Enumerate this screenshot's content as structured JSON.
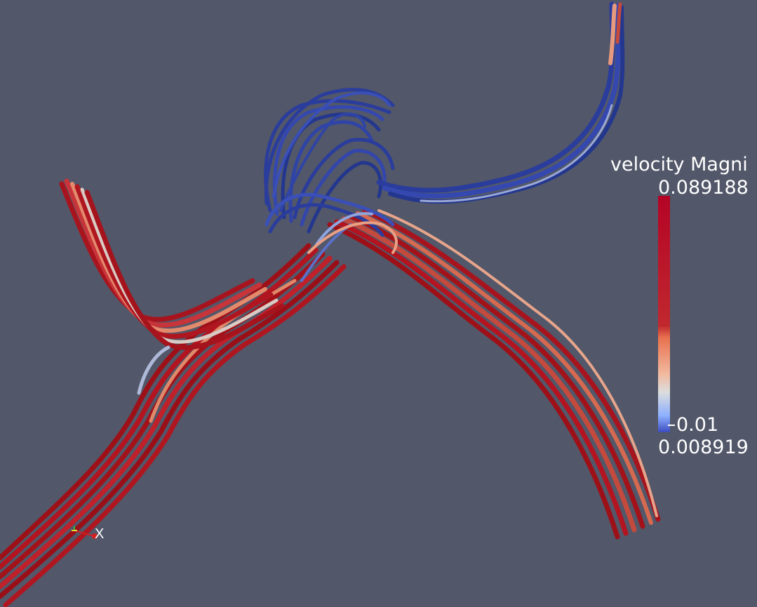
{
  "legend": {
    "title": "velocity Magni",
    "max_label": "0.089188",
    "min_label": "0.008919",
    "tick_label": "0.01",
    "colors": {
      "high": "#b40426",
      "mid_high": "#f08c6c",
      "mid": "#dddcdc",
      "low": "#3b4cc0"
    }
  },
  "axes": {
    "x_label": "X"
  },
  "colors": {
    "background": "#525769",
    "stream_red": "#a8141e",
    "stream_blue": "#2a3d9c"
  }
}
